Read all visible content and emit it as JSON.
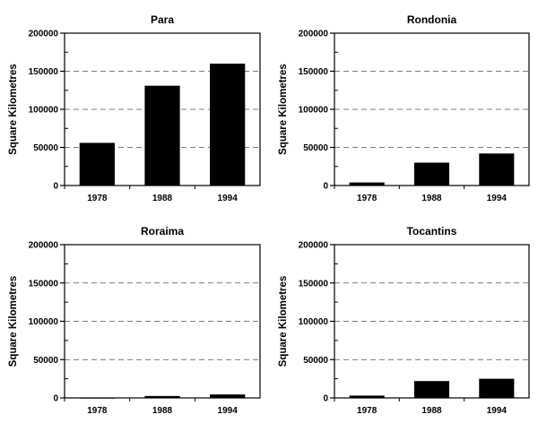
{
  "chart_data": [
    {
      "type": "bar",
      "title": "Para",
      "ylabel": "Square Kilometres",
      "xlabel": "",
      "categories": [
        "1978",
        "1988",
        "1994"
      ],
      "values": [
        56000,
        131000,
        160000
      ],
      "ylim": [
        0,
        200000
      ],
      "yticks": [
        0,
        50000,
        100000,
        150000,
        200000
      ],
      "grid": "dashed horizontal",
      "bar_color": "#000000"
    },
    {
      "type": "bar",
      "title": "Rondonia",
      "ylabel": "Square Kilometres",
      "xlabel": "",
      "categories": [
        "1978",
        "1988",
        "1994"
      ],
      "values": [
        4000,
        30000,
        42000
      ],
      "ylim": [
        0,
        200000
      ],
      "yticks": [
        0,
        50000,
        100000,
        150000,
        200000
      ],
      "grid": "dashed horizontal",
      "bar_color": "#000000"
    },
    {
      "type": "bar",
      "title": "Roraima",
      "ylabel": "Square Kilometres",
      "xlabel": "",
      "categories": [
        "1978",
        "1988",
        "1994"
      ],
      "values": [
        100,
        2500,
        4500
      ],
      "ylim": [
        0,
        200000
      ],
      "yticks": [
        0,
        50000,
        100000,
        150000,
        200000
      ],
      "grid": "dashed horizontal",
      "bar_color": "#000000"
    },
    {
      "type": "bar",
      "title": "Tocantins",
      "ylabel": "Square Kilometres",
      "xlabel": "",
      "categories": [
        "1978",
        "1988",
        "1994"
      ],
      "values": [
        3000,
        22000,
        25000
      ],
      "ylim": [
        0,
        200000
      ],
      "yticks": [
        0,
        50000,
        100000,
        150000,
        200000
      ],
      "grid": "dashed horizontal",
      "bar_color": "#000000"
    }
  ]
}
